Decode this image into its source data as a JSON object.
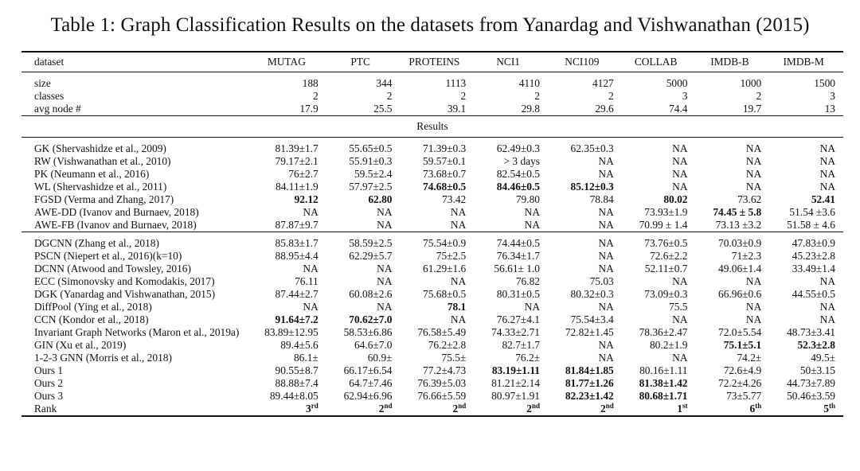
{
  "caption": "Table 1: Graph Classification Results on the datasets from Yanardag and Vishwanathan (2015)",
  "header": [
    "dataset",
    "MUTAG",
    "PTC",
    "PROTEINS",
    "NCI1",
    "NCI109",
    "COLLAB",
    "IMDB-B",
    "IMDB-M"
  ],
  "stats": [
    [
      "size",
      "188",
      "344",
      "1113",
      "4110",
      "4127",
      "5000",
      "1000",
      "1500"
    ],
    [
      "classes",
      "2",
      "2",
      "2",
      "2",
      "2",
      "3",
      "2",
      "3"
    ],
    [
      "avg node #",
      "17.9",
      "25.5",
      "39.1",
      "29.8",
      "29.6",
      "74.4",
      "19.7",
      "13"
    ]
  ],
  "results_label": "Results",
  "group1": [
    [
      "GK (Shervashidze et al., 2009)",
      "81.39±1.7",
      "55.65±0.5",
      "71.39±0.3",
      "62.49±0.3",
      "62.35±0.3",
      "NA",
      "NA",
      "NA"
    ],
    [
      "RW (Vishwanathan et al., 2010)",
      "79.17±2.1",
      "55.91±0.3",
      "59.57±0.1",
      "> 3 days",
      "NA",
      "NA",
      "NA",
      "NA"
    ],
    [
      "PK (Neumann et al., 2016)",
      "76±2.7",
      "59.5±2.4",
      "73.68±0.7",
      "82.54±0.5",
      "NA",
      "NA",
      "NA",
      "NA"
    ],
    [
      "WL (Shervashidze et al., 2011)",
      "84.11±1.9",
      "57.97±2.5",
      "74.68±0.5",
      "84.46±0.5",
      "85.12±0.3",
      "NA",
      "NA",
      "NA"
    ],
    [
      "FGSD (Verma and Zhang, 2017)",
      "92.12",
      "62.80",
      "73.42",
      "79.80",
      "78.84",
      "80.02",
      "73.62",
      "52.41"
    ],
    [
      "AWE-DD (Ivanov and Burnaev, 2018)",
      "NA",
      "NA",
      "NA",
      "NA",
      "NA",
      "73.93±1.9",
      "74.45 ± 5.8",
      "51.54 ±3.6"
    ],
    [
      "AWE-FB (Ivanov and Burnaev, 2018)",
      "87.87±9.7",
      "NA",
      "NA",
      "NA",
      "NA",
      "70.99 ± 1.4",
      "73.13 ±3.2",
      "51.58 ± 4.6"
    ]
  ],
  "group2": [
    [
      "DGCNN (Zhang et al., 2018)",
      "85.83±1.7",
      "58.59±2.5",
      "75.54±0.9",
      "74.44±0.5",
      "NA",
      "73.76±0.5",
      "70.03±0.9",
      "47.83±0.9"
    ],
    [
      "PSCN (Niepert et al., 2016)(k=10)",
      "88.95±4.4",
      "62.29±5.7",
      "75±2.5",
      "76.34±1.7",
      "NA",
      "72.6±2.2",
      "71±2.3",
      "45.23±2.8"
    ],
    [
      "DCNN (Atwood and Towsley, 2016)",
      "NA",
      "NA",
      "61.29±1.6",
      "56.61± 1.0",
      "NA",
      "52.11±0.7",
      "49.06±1.4",
      "33.49±1.4"
    ],
    [
      "ECC (Simonovsky and Komodakis, 2017)",
      "76.11",
      "NA",
      "NA",
      "76.82",
      "75.03",
      "NA",
      "NA",
      "NA"
    ],
    [
      "DGK (Yanardag and Vishwanathan, 2015)",
      "87.44±2.7",
      "60.08±2.6",
      "75.68±0.5",
      "80.31±0.5",
      "80.32±0.3",
      "73.09±0.3",
      "66.96±0.6",
      "44.55±0.5"
    ],
    [
      "DiffPool (Ying et al., 2018)",
      "NA",
      "NA",
      "78.1",
      "NA",
      "NA",
      "75.5",
      "NA",
      "NA"
    ],
    [
      "CCN (Kondor et al., 2018)",
      "91.64±7.2",
      "70.62±7.0",
      "NA",
      "76.27±4.1",
      "75.54±3.4",
      "NA",
      "NA",
      "NA"
    ],
    [
      "Invariant Graph Networks (Maron et al., 2019a)",
      "83.89±12.95",
      "58.53±6.86",
      "76.58±5.49",
      "74.33±2.71",
      "72.82±1.45",
      "78.36±2.47",
      "72.0±5.54",
      "48.73±3.41"
    ],
    [
      "GIN (Xu et al., 2019)",
      "89.4±5.6",
      "64.6±7.0",
      "76.2±2.8",
      "82.7±1.7",
      "NA",
      "80.2±1.9",
      "75.1±5.1",
      "52.3±2.8"
    ],
    [
      "1-2-3 GNN (Morris et al., 2018)",
      "86.1±",
      "60.9±",
      "75.5±",
      "76.2±",
      "NA",
      "NA",
      "74.2±",
      "49.5±"
    ],
    [
      "Ours 1",
      "90.55±8.7",
      "66.17±6.54",
      "77.2±4.73",
      "83.19±1.11",
      "81.84±1.85",
      "80.16±1.11",
      "72.6±4.9",
      "50±3.15"
    ],
    [
      "Ours 2",
      "88.88±7.4",
      "64.7±7.46",
      "76.39±5.03",
      "81.21±2.14",
      "81.77±1.26",
      "81.38±1.42",
      "72.2±4.26",
      "44.73±7.89"
    ],
    [
      "Ours 3",
      "89.44±8.05",
      "62.94±6.96",
      "76.66±5.59",
      "80.97±1.91",
      "82.23±1.42",
      "80.68±1.71",
      "73±5.77",
      "50.46±3.59"
    ]
  ],
  "rank": {
    "label": "Rank",
    "values": [
      {
        "n": "3",
        "s": "rd"
      },
      {
        "n": "2",
        "s": "nd"
      },
      {
        "n": "2",
        "s": "nd"
      },
      {
        "n": "2",
        "s": "nd"
      },
      {
        "n": "2",
        "s": "nd"
      },
      {
        "n": "1",
        "s": "st"
      },
      {
        "n": "6",
        "s": "th"
      },
      {
        "n": "5",
        "s": "th"
      }
    ]
  },
  "bold_cells": {
    "group1": [
      [
        3,
        3
      ],
      [
        3,
        4
      ],
      [
        3,
        5
      ],
      [
        4,
        1
      ],
      [
        4,
        2
      ],
      [
        4,
        6
      ],
      [
        4,
        8
      ],
      [
        5,
        7
      ]
    ],
    "group2": [
      [
        5,
        3
      ],
      [
        6,
        1
      ],
      [
        6,
        2
      ],
      [
        8,
        7
      ],
      [
        8,
        8
      ],
      [
        10,
        4
      ],
      [
        10,
        5
      ],
      [
        11,
        5
      ],
      [
        11,
        6
      ],
      [
        12,
        5
      ],
      [
        12,
        6
      ]
    ]
  }
}
